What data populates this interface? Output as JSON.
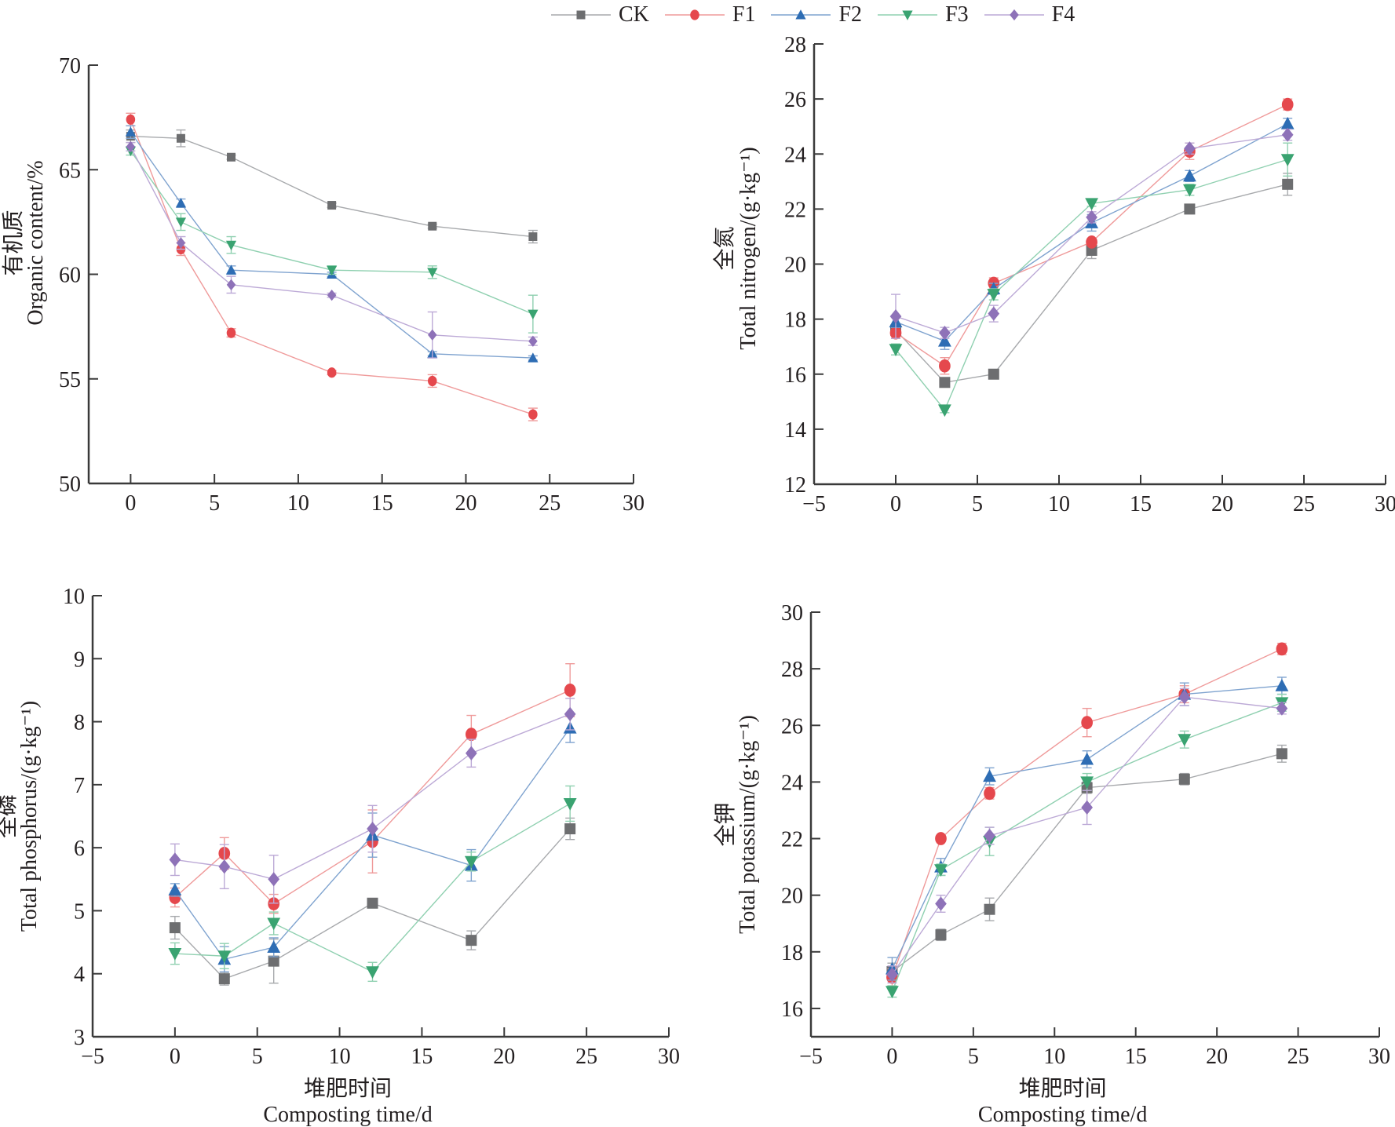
{
  "legend": [
    {
      "name": "CK",
      "color": "#6d6e70",
      "line": "#a7a9ac",
      "marker": "square"
    },
    {
      "name": "F1",
      "color": "#e5484d",
      "line": "#ef9a9a",
      "marker": "circle"
    },
    {
      "name": "F2",
      "color": "#2e6db4",
      "line": "#7fa3cf",
      "marker": "triangle-up"
    },
    {
      "name": "F3",
      "color": "#3aa371",
      "line": "#8fd0b0",
      "marker": "triangle-down"
    },
    {
      "name": "F4",
      "color": "#8e72b8",
      "line": "#bca9d6",
      "marker": "diamond"
    }
  ],
  "chart_data": [
    {
      "type": "line",
      "title": "",
      "ylabel_cn": "有机质",
      "ylabel": "Organic content/%",
      "xlabel_cn": "",
      "xlabel": "",
      "x": [
        0,
        3,
        6,
        12,
        18,
        24
      ],
      "xlim": [
        -2.5,
        30
      ],
      "ylim": [
        50,
        70
      ],
      "xticks": [
        0,
        5,
        10,
        15,
        20,
        25,
        30
      ],
      "yticks": [
        50,
        55,
        60,
        65,
        70
      ],
      "grid": false,
      "series": [
        {
          "name": "CK",
          "values": [
            66.6,
            66.5,
            65.6,
            63.3,
            62.3,
            61.8
          ],
          "errors": [
            0.3,
            0.4,
            0.1,
            0.1,
            0.1,
            0.3
          ]
        },
        {
          "name": "F1",
          "values": [
            67.4,
            61.2,
            57.2,
            55.3,
            54.9,
            53.3
          ],
          "errors": [
            0.3,
            0.3,
            0.2,
            0.1,
            0.3,
            0.3
          ]
        },
        {
          "name": "F2",
          "values": [
            66.8,
            63.4,
            60.2,
            60.0,
            56.2,
            56.0
          ],
          "errors": [
            0.3,
            0.2,
            0.2,
            0.1,
            0.1,
            0.1
          ]
        },
        {
          "name": "F3",
          "values": [
            65.9,
            62.5,
            61.4,
            60.2,
            60.1,
            58.1
          ],
          "errors": [
            0.2,
            0.4,
            0.4,
            0.2,
            0.3,
            0.9
          ]
        },
        {
          "name": "F4",
          "values": [
            66.1,
            61.5,
            59.5,
            59.0,
            57.1,
            56.8
          ],
          "errors": [
            0.2,
            0.3,
            0.4,
            0.1,
            1.1,
            0.2
          ]
        }
      ]
    },
    {
      "type": "line",
      "title": "",
      "ylabel_cn": "全氮",
      "ylabel": "Total nitrogen/(g·kg⁻¹)",
      "xlabel_cn": "",
      "xlabel": "",
      "x": [
        0,
        3,
        6,
        12,
        18,
        24
      ],
      "xlim": [
        -5,
        30
      ],
      "ylim": [
        12,
        28
      ],
      "xticks": [
        -5,
        0,
        5,
        10,
        15,
        20,
        25,
        30
      ],
      "yticks": [
        12,
        14,
        16,
        18,
        20,
        22,
        24,
        26,
        28
      ],
      "grid": false,
      "series": [
        {
          "name": "CK",
          "values": [
            17.6,
            15.7,
            16.0,
            20.5,
            22.0,
            22.9
          ],
          "errors": [
            0.2,
            0.1,
            0.1,
            0.3,
            0.1,
            0.4
          ]
        },
        {
          "name": "F1",
          "values": [
            17.5,
            16.3,
            19.3,
            20.8,
            24.1,
            25.8
          ],
          "errors": [
            0.2,
            0.3,
            0.2,
            0.1,
            0.3,
            0.2
          ]
        },
        {
          "name": "F2",
          "values": [
            17.9,
            17.2,
            19.1,
            21.5,
            23.2,
            25.1
          ],
          "errors": [
            0.2,
            0.3,
            0.2,
            0.3,
            0.2,
            0.2
          ]
        },
        {
          "name": "F3",
          "values": [
            16.9,
            14.7,
            18.9,
            22.2,
            22.7,
            23.8
          ],
          "errors": [
            0.2,
            0.1,
            0.2,
            0.1,
            0.2,
            0.6
          ]
        },
        {
          "name": "F4",
          "values": [
            18.1,
            17.5,
            18.2,
            21.7,
            24.2,
            24.7
          ],
          "errors": [
            0.8,
            0.2,
            0.3,
            0.2,
            0.2,
            0.2
          ]
        }
      ]
    },
    {
      "type": "line",
      "title": "",
      "ylabel_cn": "全磷",
      "ylabel": "Total phosphorus/(g·kg⁻¹)",
      "xlabel_cn": "堆肥时间",
      "xlabel": "Composting time/d",
      "x": [
        0,
        3,
        6,
        12,
        18,
        24
      ],
      "xlim": [
        -5,
        30
      ],
      "ylim": [
        3,
        10
      ],
      "xticks": [
        -5,
        0,
        5,
        10,
        15,
        20,
        25,
        30
      ],
      "yticks": [
        3,
        4,
        5,
        6,
        7,
        8,
        9,
        10
      ],
      "grid": false,
      "series": [
        {
          "name": "CK",
          "values": [
            4.73,
            3.92,
            4.2,
            5.12,
            4.53,
            6.3
          ],
          "errors": [
            0.18,
            0.1,
            0.35,
            0.05,
            0.15,
            0.17
          ]
        },
        {
          "name": "F1",
          "values": [
            5.21,
            5.91,
            5.11,
            6.1,
            7.8,
            8.5
          ],
          "errors": [
            0.15,
            0.25,
            0.15,
            0.5,
            0.3,
            0.42
          ]
        },
        {
          "name": "F2",
          "values": [
            5.33,
            4.23,
            4.42,
            6.2,
            5.72,
            7.9
          ],
          "errors": [
            0.1,
            0.2,
            0.15,
            0.35,
            0.25,
            0.23
          ]
        },
        {
          "name": "F3",
          "values": [
            4.32,
            4.28,
            4.8,
            4.03,
            5.78,
            6.7
          ],
          "errors": [
            0.17,
            0.2,
            0.18,
            0.15,
            0.15,
            0.28
          ]
        },
        {
          "name": "F4",
          "values": [
            5.81,
            5.7,
            5.5,
            6.3,
            7.5,
            8.12
          ],
          "errors": [
            0.25,
            0.35,
            0.38,
            0.37,
            0.22,
            0.25
          ]
        }
      ]
    },
    {
      "type": "line",
      "title": "",
      "ylabel_cn": "全钾",
      "ylabel": "Total potassium/(g·kg⁻¹)",
      "xlabel_cn": "堆肥时间",
      "xlabel": "Composting time/d",
      "x": [
        0,
        3,
        6,
        12,
        18,
        24
      ],
      "xlim": [
        -5,
        30
      ],
      "ylim": [
        15,
        30
      ],
      "xticks": [
        -5,
        0,
        5,
        10,
        15,
        20,
        25,
        30
      ],
      "yticks": [
        16,
        18,
        20,
        22,
        24,
        26,
        28,
        30
      ],
      "grid": false,
      "series": [
        {
          "name": "CK",
          "values": [
            17.3,
            18.6,
            19.5,
            23.8,
            24.1,
            25.0
          ],
          "errors": [
            0.3,
            0.2,
            0.4,
            0.2,
            0.2,
            0.3
          ]
        },
        {
          "name": "F1",
          "values": [
            17.1,
            22.0,
            23.6,
            26.1,
            27.1,
            28.7
          ],
          "errors": [
            0.3,
            0.1,
            0.2,
            0.5,
            0.3,
            0.2
          ]
        },
        {
          "name": "F2",
          "values": [
            17.4,
            21.0,
            24.2,
            24.8,
            27.1,
            27.4
          ],
          "errors": [
            0.4,
            0.3,
            0.3,
            0.3,
            0.4,
            0.3
          ]
        },
        {
          "name": "F3",
          "values": [
            16.6,
            20.9,
            21.9,
            24.0,
            25.5,
            26.8
          ],
          "errors": [
            0.2,
            0.2,
            0.5,
            0.3,
            0.3,
            0.3
          ]
        },
        {
          "name": "F4",
          "values": [
            17.2,
            19.7,
            22.1,
            23.1,
            27.0,
            26.6
          ],
          "errors": [
            0.3,
            0.3,
            0.3,
            0.6,
            0.3,
            0.2
          ]
        }
      ]
    }
  ]
}
